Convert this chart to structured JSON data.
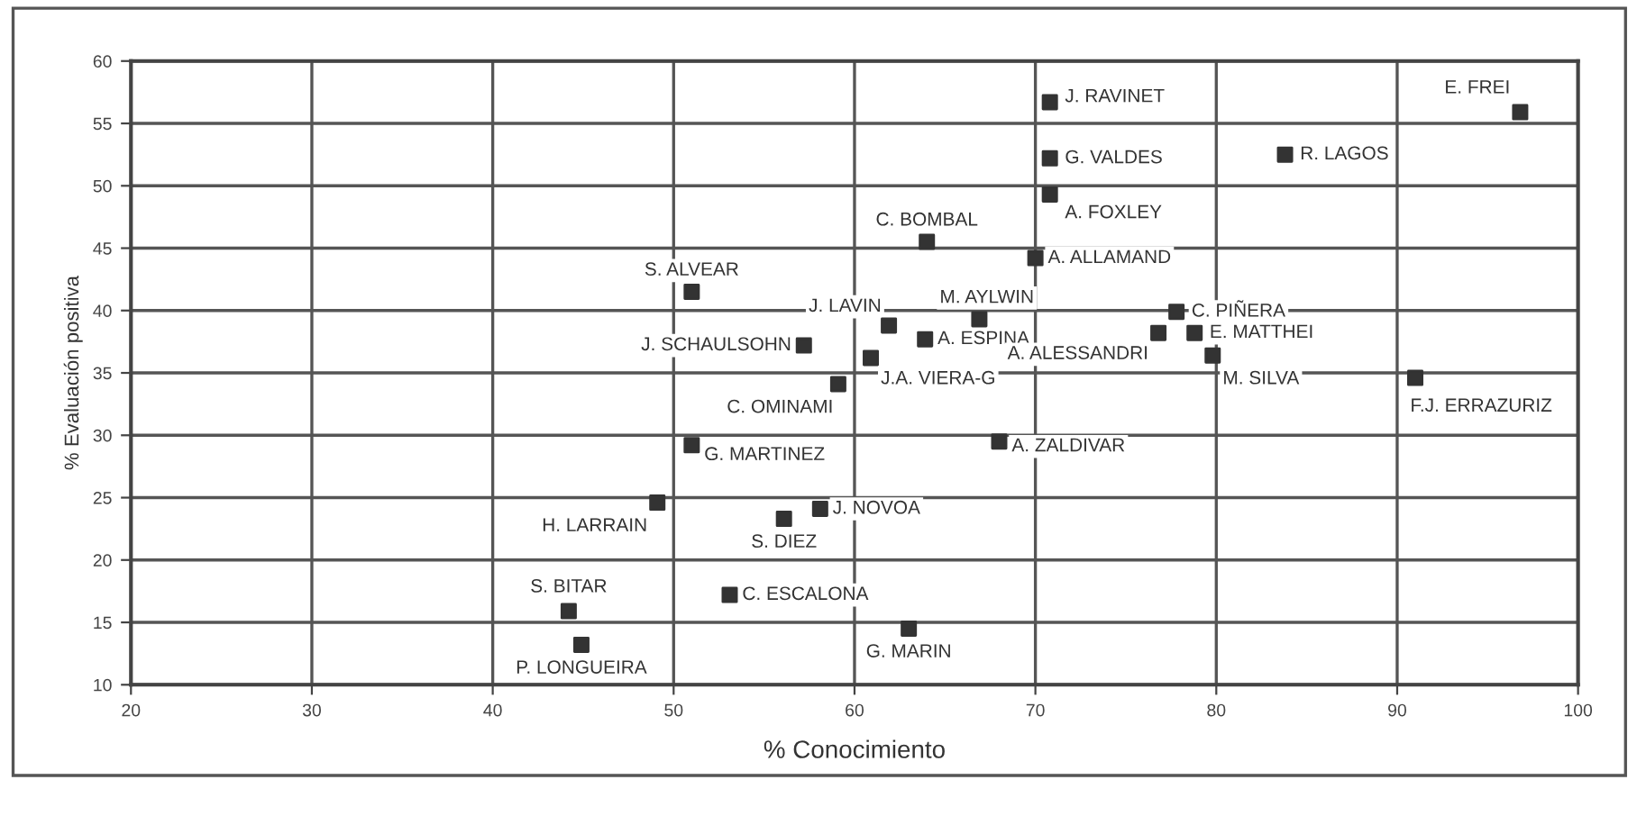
{
  "chart_data": {
    "type": "scatter",
    "xlabel": "% Conocimiento",
    "ylabel": "% Evaluación positiva",
    "xlim": [
      20,
      100
    ],
    "xticks": [
      20,
      30,
      40,
      50,
      60,
      70,
      80,
      90,
      100
    ],
    "ylim": [
      10,
      60
    ],
    "yticks": [
      10,
      15,
      20,
      25,
      30,
      35,
      40,
      45,
      50,
      55,
      60
    ],
    "grid": true,
    "marker": "square",
    "series": [
      {
        "color": "#333333",
        "x": [
          96.8,
          83.8,
          70.8,
          70.8,
          70.8,
          64.0,
          70.0,
          66.9,
          61.9,
          63.9,
          60.9,
          57.2,
          59.1,
          51.0,
          77.8,
          76.8,
          78.8,
          79.8,
          91.0,
          68.0,
          51.0,
          49.1,
          56.1,
          58.1,
          53.1,
          44.2,
          44.9,
          63.0
        ],
        "values": [
          55.9,
          52.5,
          56.7,
          52.2,
          49.3,
          45.5,
          44.2,
          39.3,
          38.8,
          37.7,
          36.2,
          37.2,
          34.1,
          41.5,
          39.9,
          38.2,
          38.2,
          36.4,
          34.6,
          29.5,
          29.2,
          24.6,
          23.3,
          24.1,
          17.2,
          15.9,
          13.2,
          14.5
        ]
      }
    ],
    "annotations": [
      {
        "text": "E. FREI",
        "x": 96.8,
        "y": 55.9
      },
      {
        "text": "R. LAGOS",
        "x": 83.8,
        "y": 52.5
      },
      {
        "text": "J. RAVINET",
        "x": 70.8,
        "y": 56.7
      },
      {
        "text": "G. VALDES",
        "x": 70.8,
        "y": 52.2
      },
      {
        "text": "A. FOXLEY",
        "x": 70.8,
        "y": 49.3
      },
      {
        "text": "C. BOMBAL",
        "x": 64.0,
        "y": 45.5
      },
      {
        "text": "A. ALLAMAND",
        "x": 70.0,
        "y": 44.2
      },
      {
        "text": "M. AYLWIN",
        "x": 66.9,
        "y": 39.3
      },
      {
        "text": "J. LAVIN",
        "x": 61.9,
        "y": 38.8
      },
      {
        "text": "A. ESPINA",
        "x": 63.9,
        "y": 37.7
      },
      {
        "text": "J.A. VIERA-G",
        "x": 60.9,
        "y": 36.2
      },
      {
        "text": "J. SCHAULSOHN",
        "x": 57.2,
        "y": 37.2
      },
      {
        "text": "C. OMINAMI",
        "x": 59.1,
        "y": 34.1
      },
      {
        "text": "S. ALVEAR",
        "x": 51.0,
        "y": 41.5
      },
      {
        "text": "C. PIÑERA",
        "x": 77.8,
        "y": 39.9
      },
      {
        "text": "A. ALESSANDRI",
        "x": 76.8,
        "y": 38.2
      },
      {
        "text": "E. MATTHEI",
        "x": 78.8,
        "y": 38.2
      },
      {
        "text": "M. SILVA",
        "x": 79.8,
        "y": 36.4
      },
      {
        "text": "F.J. ERRAZURIZ",
        "x": 91.0,
        "y": 34.6
      },
      {
        "text": "A. ZALDIVAR",
        "x": 68.0,
        "y": 29.5
      },
      {
        "text": "G. MARTINEZ",
        "x": 51.0,
        "y": 29.2
      },
      {
        "text": "H. LARRAIN",
        "x": 49.1,
        "y": 24.6
      },
      {
        "text": "S. DIEZ",
        "x": 56.1,
        "y": 23.3
      },
      {
        "text": "J. NOVOA",
        "x": 58.1,
        "y": 24.1
      },
      {
        "text": "C. ESCALONA",
        "x": 53.1,
        "y": 17.2
      },
      {
        "text": "S. BITAR",
        "x": 44.2,
        "y": 15.9
      },
      {
        "text": "P. LONGUEIRA",
        "x": 44.9,
        "y": 13.2
      },
      {
        "text": "G. MARIN",
        "x": 63.0,
        "y": 14.5
      }
    ]
  }
}
